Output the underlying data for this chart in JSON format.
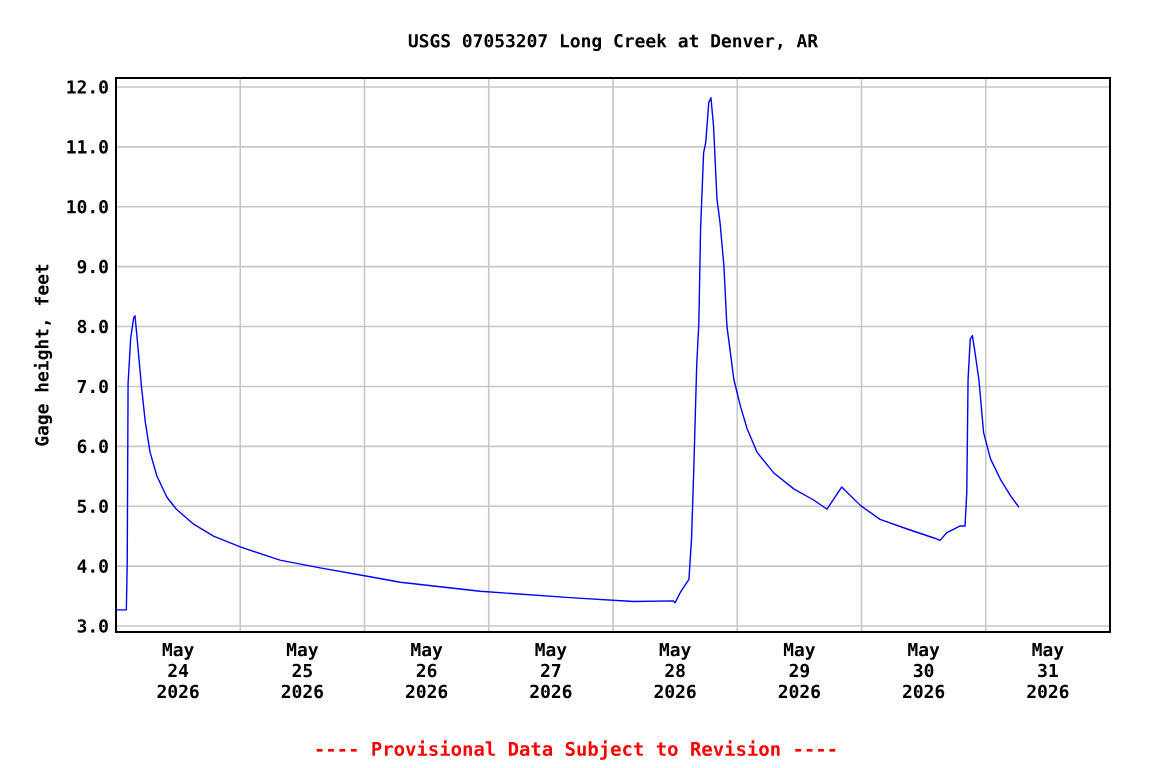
{
  "chart_data": {
    "type": "line",
    "title": "USGS 07053207 Long Creek at Denver, AR",
    "ylabel": "Gage height, feet",
    "annotations": [
      "---- Provisional Data Subject to Revision ----"
    ],
    "x": [
      "2026-05-24T00:00",
      "2026-05-24T02:00",
      "2026-05-24T02:10",
      "2026-05-24T02:20",
      "2026-05-24T02:50",
      "2026-05-24T03:25",
      "2026-05-24T03:40",
      "2026-05-24T04:05",
      "2026-05-24T04:55",
      "2026-05-24T05:40",
      "2026-05-24T06:35",
      "2026-05-24T07:55",
      "2026-05-24T09:50",
      "2026-05-24T11:40",
      "2026-05-24T15:00",
      "2026-05-24T18:50",
      "2026-05-25T00:00",
      "2026-05-25T07:40",
      "2026-05-25T15:25",
      "2026-05-26T00:00",
      "2026-05-26T06:55",
      "2026-05-26T22:20",
      "2026-05-27T16:25",
      "2026-05-28T04:00",
      "2026-05-28T11:40",
      "2026-05-28T12:00",
      "2026-05-28T13:00",
      "2026-05-28T14:40",
      "2026-05-28T15:10",
      "2026-05-28T15:35",
      "2026-05-28T16:10",
      "2026-05-28T16:35",
      "2026-05-28T16:55",
      "2026-05-28T17:30",
      "2026-05-28T17:55",
      "2026-05-28T18:30",
      "2026-05-28T18:55",
      "2026-05-28T19:25",
      "2026-05-28T20:05",
      "2026-05-28T20:40",
      "2026-05-28T21:25",
      "2026-05-28T22:00",
      "2026-05-28T22:40",
      "2026-05-28T23:20",
      "2026-05-29T00:35",
      "2026-05-29T01:55",
      "2026-05-29T03:50",
      "2026-05-29T07:00",
      "2026-05-29T10:55",
      "2026-05-29T14:50",
      "2026-05-29T17:20",
      "2026-05-29T20:10",
      "2026-05-29T23:50",
      "2026-05-30T03:35",
      "2026-05-30T08:50",
      "2026-05-30T14:00",
      "2026-05-30T15:10",
      "2026-05-30T16:30",
      "2026-05-30T19:05",
      "2026-05-30T20:00",
      "2026-05-30T20:20",
      "2026-05-30T20:35",
      "2026-05-30T21:00",
      "2026-05-30T21:25",
      "2026-05-30T21:55",
      "2026-05-30T22:40",
      "2026-05-30T23:35",
      "2026-05-31T00:55",
      "2026-05-31T02:50",
      "2026-05-31T04:50",
      "2026-05-31T06:25"
    ],
    "series": [
      {
        "color": "#0000ff",
        "values": [
          3.27,
          3.27,
          4.05,
          7.05,
          7.8,
          8.15,
          8.18,
          7.8,
          7.0,
          6.4,
          5.9,
          5.5,
          5.15,
          4.95,
          4.7,
          4.5,
          4.32,
          4.1,
          3.97,
          3.84,
          3.73,
          3.58,
          3.47,
          3.41,
          3.42,
          3.39,
          3.56,
          3.78,
          4.45,
          5.56,
          7.35,
          8.07,
          9.63,
          10.9,
          11.08,
          11.74,
          11.82,
          11.35,
          10.13,
          9.74,
          9.02,
          8.01,
          7.57,
          7.12,
          6.68,
          6.29,
          5.9,
          5.56,
          5.29,
          5.1,
          4.95,
          5.32,
          5.01,
          4.78,
          4.62,
          4.47,
          4.43,
          4.56,
          4.67,
          4.67,
          5.23,
          7.12,
          7.79,
          7.85,
          7.57,
          7.12,
          6.23,
          5.79,
          5.45,
          5.17,
          4.98
        ]
      }
    ],
    "xlim": [
      "2026-05-24T00:00",
      "2026-06-01T00:00"
    ],
    "xticks": [
      {
        "value": "2026-05-24T12:00",
        "label": "May 24 2026"
      },
      {
        "value": "2026-05-25T12:00",
        "label": "May 25 2026"
      },
      {
        "value": "2026-05-26T12:00",
        "label": "May 26 2026"
      },
      {
        "value": "2026-05-27T12:00",
        "label": "May 27 2026"
      },
      {
        "value": "2026-05-28T12:00",
        "label": "May 28 2026"
      },
      {
        "value": "2026-05-29T12:00",
        "label": "May 29 2026"
      },
      {
        "value": "2026-05-30T12:00",
        "label": "May 30 2026"
      },
      {
        "value": "2026-05-31T12:00",
        "label": "May 31 2026"
      },
      {
        "value": "2026-05-25T00:00",
        "label": null
      },
      {
        "value": "2026-05-26T00:00",
        "label": null
      },
      {
        "value": "2026-05-27T00:00",
        "label": null
      },
      {
        "value": "2026-05-28T00:00",
        "label": null
      },
      {
        "value": "2026-05-29T00:00",
        "label": null
      },
      {
        "value": "2026-05-30T00:00",
        "label": null
      },
      {
        "value": "2026-05-31T00:00",
        "label": null
      }
    ],
    "ylim": [
      2.9,
      12.15
    ],
    "yticks": [
      {
        "value": 3,
        "label": "3.0"
      },
      {
        "value": 4,
        "label": "4.0"
      },
      {
        "value": 5,
        "label": "5.0"
      },
      {
        "value": 6,
        "label": "6.0"
      },
      {
        "value": 7,
        "label": "7.0"
      },
      {
        "value": 8,
        "label": "8.0"
      },
      {
        "value": 9,
        "label": "9.0"
      },
      {
        "value": 10,
        "label": "10.0"
      },
      {
        "value": 11,
        "label": "11.0"
      },
      {
        "value": 12,
        "label": "12.0"
      }
    ],
    "grid": true,
    "legend": false,
    "marker": "none",
    "line_style": "solid"
  }
}
